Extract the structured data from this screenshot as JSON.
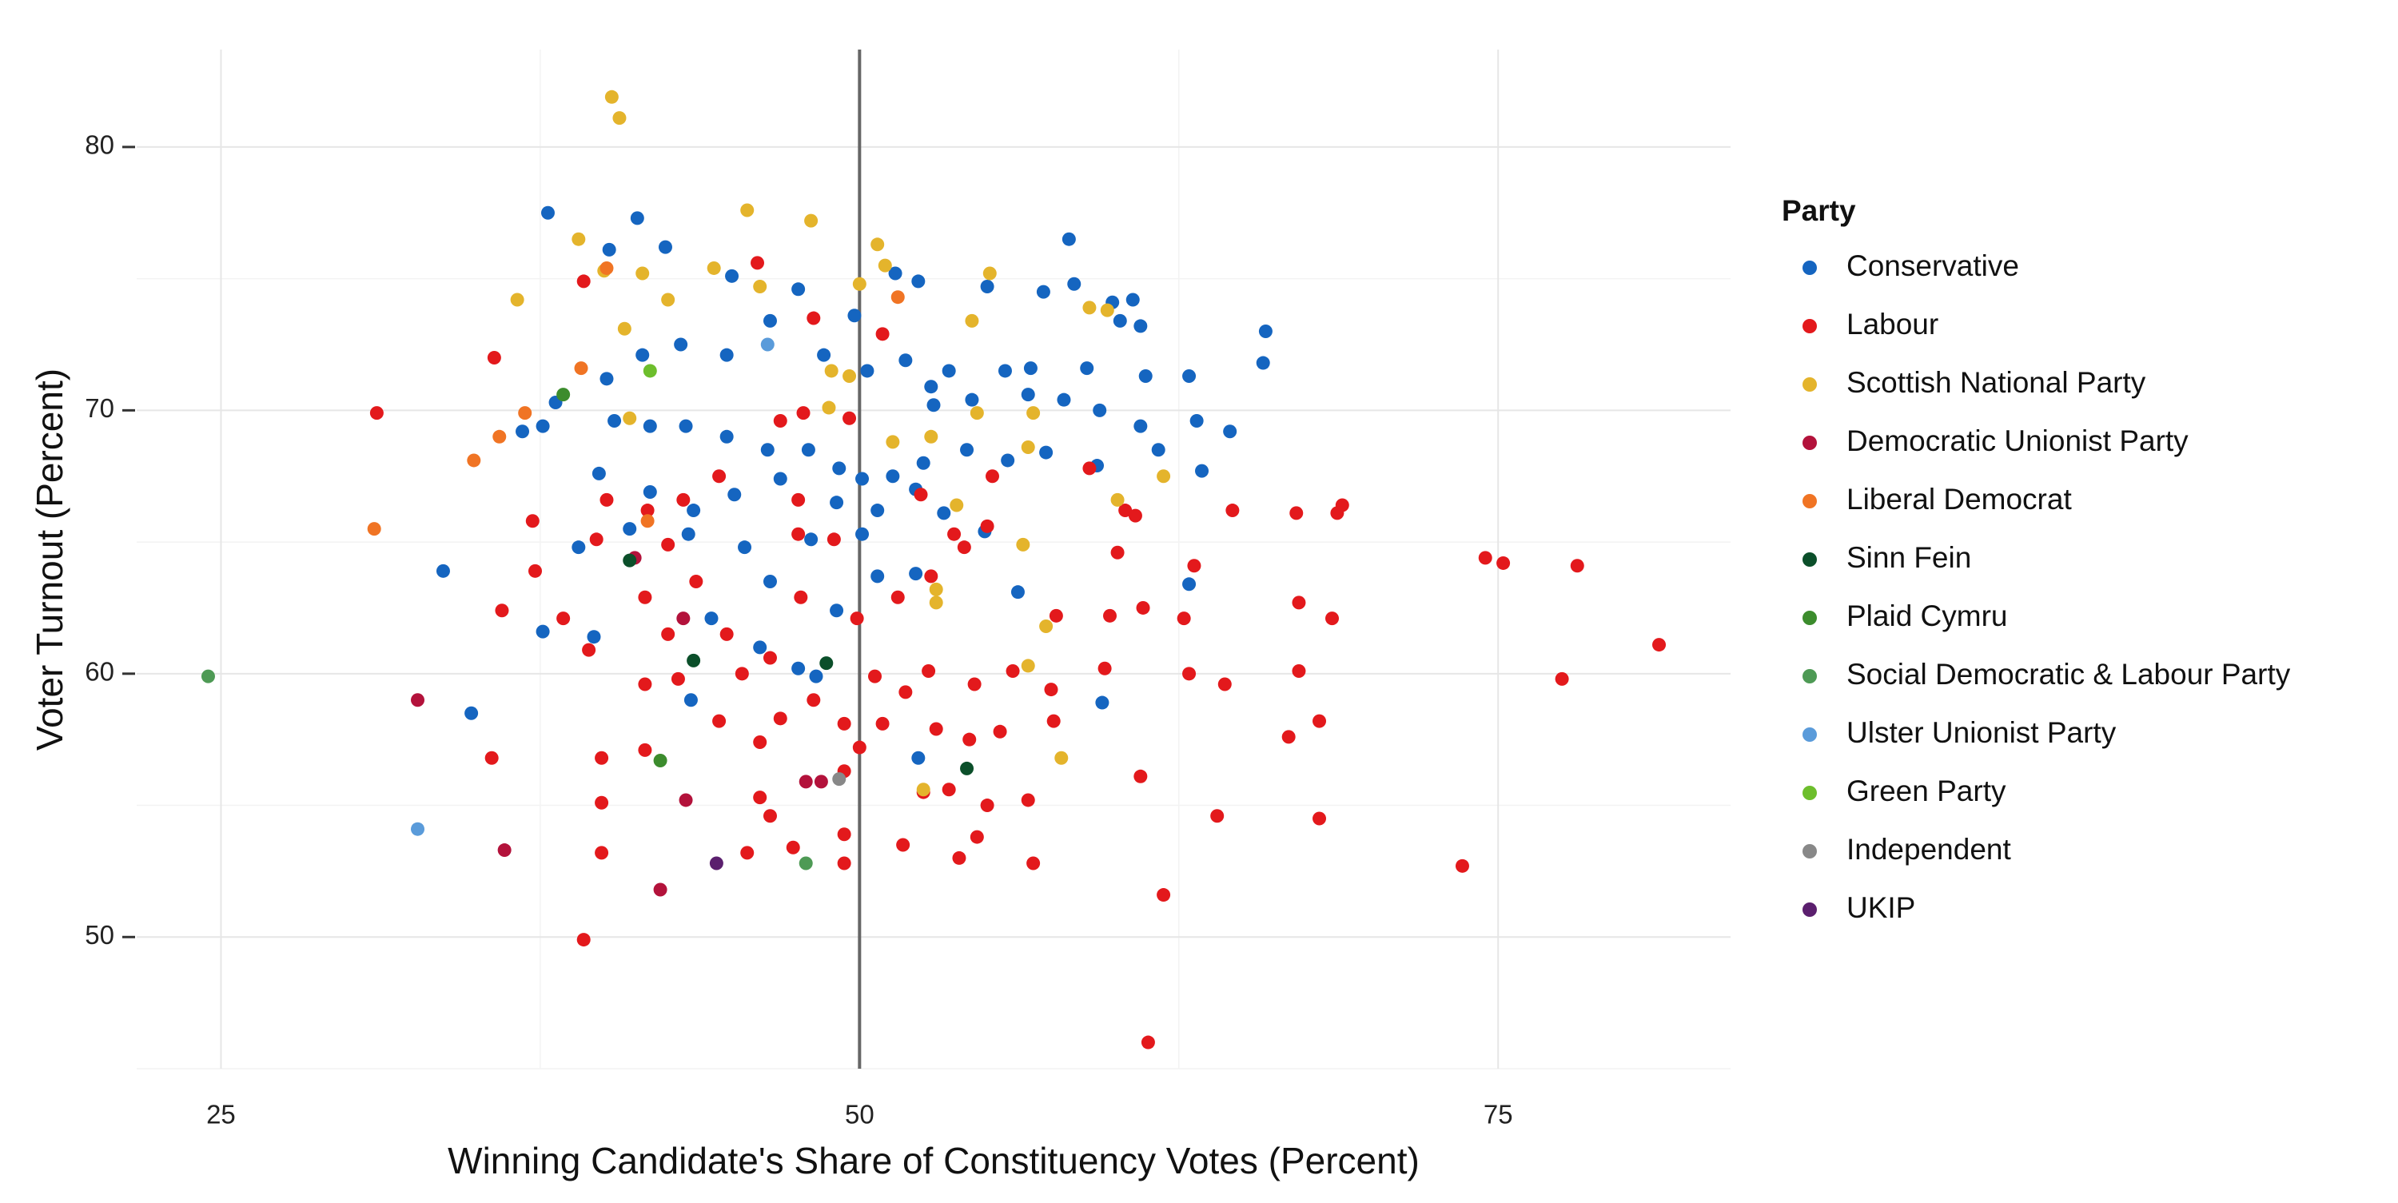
{
  "chart_data": {
    "type": "scatter",
    "x_label": "Winning Candidate's Share of Constituency Votes (Percent)",
    "y_label": "Voter Turnout (Percent)",
    "xlim": [
      21.7,
      84.1
    ],
    "ylim": [
      45.0,
      83.7
    ],
    "xticks": [
      25,
      50,
      75
    ],
    "yticks": [
      50,
      60,
      70,
      80
    ],
    "x_minor_grid": [
      37.5,
      62.5
    ],
    "y_minor_grid": [
      45,
      55,
      65,
      75
    ],
    "grid": true,
    "vline": 50,
    "legend_title": "Party",
    "legend_position": "right",
    "series": [
      {
        "name": "Conservative",
        "color": "#1565C0",
        "x": [
          37.8,
          41.3,
          42.4,
          40.2,
          58.2,
          45.0,
          47.6,
          49.8,
          51.4,
          52.3,
          55.0,
          57.2,
          58.4,
          59.9,
          60.7,
          61.0,
          60.2,
          65.9,
          65.8,
          62.9,
          61.2,
          58.9,
          56.7,
          55.7,
          53.5,
          52.8,
          51.8,
          50.3,
          48.6,
          46.5,
          44.8,
          43.0,
          41.5,
          40.1,
          38.1,
          36.8,
          37.6,
          40.4,
          41.8,
          43.2,
          44.8,
          46.4,
          48.0,
          49.2,
          50.1,
          51.3,
          52.5,
          54.2,
          55.8,
          57.3,
          59.3,
          61.7,
          63.4,
          64.5,
          63.2,
          61.0,
          59.4,
          58.0,
          56.6,
          54.4,
          52.9,
          39.8,
          41.8,
          43.5,
          45.1,
          46.9,
          49.1,
          50.7,
          52.2,
          53.3,
          54.9,
          50.1,
          48.1,
          45.5,
          43.3,
          41.0,
          39.0,
          33.7,
          37.6,
          39.6,
          34.8,
          49.1,
          50.7,
          52.2,
          56.2,
          59.5,
          52.3,
          62.9,
          46.5,
          44.2,
          48.3,
          43.4,
          46.1,
          47.6
        ],
        "y": [
          77.5,
          77.3,
          76.2,
          76.1,
          76.5,
          75.1,
          74.6,
          73.6,
          75.2,
          74.9,
          74.7,
          74.5,
          74.8,
          74.1,
          74.2,
          73.2,
          73.4,
          73.0,
          71.8,
          71.3,
          71.3,
          71.6,
          71.6,
          71.5,
          71.5,
          70.9,
          71.9,
          71.5,
          72.1,
          73.4,
          72.1,
          72.5,
          72.1,
          71.2,
          70.3,
          69.2,
          69.4,
          69.6,
          69.4,
          69.4,
          69.0,
          68.5,
          68.5,
          67.8,
          67.4,
          67.5,
          68.0,
          68.5,
          68.1,
          68.4,
          67.9,
          68.5,
          67.7,
          69.2,
          69.6,
          69.4,
          70.0,
          70.4,
          70.6,
          70.4,
          70.2,
          67.6,
          66.9,
          66.2,
          66.8,
          67.4,
          66.5,
          66.2,
          67.0,
          66.1,
          65.4,
          65.3,
          65.1,
          64.8,
          65.3,
          65.5,
          64.8,
          63.9,
          61.6,
          61.4,
          58.5,
          62.4,
          63.7,
          63.8,
          63.1,
          58.9,
          56.8,
          63.4,
          63.5,
          62.1,
          59.9,
          59.0,
          61.0,
          60.2
        ]
      },
      {
        "name": "Labour",
        "color": "#E3191C",
        "x": [
          31.1,
          35.7,
          39.2,
          48.2,
          50.9,
          46.0,
          36.0,
          37.3,
          37.2,
          38.4,
          39.4,
          39.7,
          40.1,
          41.7,
          42.5,
          41.6,
          42.5,
          43.6,
          41.6,
          42.9,
          44.5,
          46.5,
          46.9,
          46.1,
          48.2,
          49.4,
          50.0,
          49.4,
          46.1,
          46.5,
          47.4,
          45.6,
          49.4,
          49.4,
          39.9,
          39.2,
          39.9,
          35.6,
          39.9,
          41.6,
          52.5,
          53.5,
          51.7,
          53.9,
          54.6,
          56.8,
          56.6,
          55.0,
          53.0,
          54.3,
          55.5,
          57.6,
          57.5,
          56.0,
          54.5,
          52.7,
          51.8,
          50.9,
          50.6,
          49.9,
          51.5,
          52.8,
          54.1,
          55.0,
          57.7,
          59.8,
          59.6,
          61.1,
          60.1,
          60.4,
          60.8,
          64.6,
          67.1,
          68.7,
          68.9,
          67.2,
          68.5,
          67.2,
          68.0,
          66.8,
          68.0,
          64.0,
          64.3,
          62.9,
          63.1,
          62.7,
          61.0,
          61.9,
          61.3,
          73.6,
          74.5,
          75.2,
          78.1,
          81.3,
          77.5,
          46.9,
          47.8,
          49.6,
          44.5,
          43.1,
          47.6,
          49.0,
          47.6,
          52.4,
          53.7,
          55.2,
          59.0,
          44.8,
          45.4,
          47.7
        ],
        "y": [
          69.9,
          72.0,
          74.9,
          73.5,
          72.9,
          75.6,
          62.4,
          63.9,
          65.8,
          62.1,
          60.9,
          65.1,
          66.6,
          66.2,
          64.9,
          62.9,
          61.5,
          63.5,
          59.6,
          59.8,
          58.2,
          60.6,
          58.3,
          57.4,
          59.0,
          58.1,
          57.2,
          56.3,
          55.3,
          54.6,
          53.4,
          53.2,
          53.9,
          52.8,
          55.1,
          49.9,
          53.2,
          56.8,
          56.8,
          57.1,
          55.5,
          55.6,
          53.5,
          53.0,
          53.8,
          52.8,
          55.2,
          55.0,
          57.9,
          57.5,
          57.8,
          58.2,
          59.4,
          60.1,
          59.6,
          60.1,
          59.3,
          58.1,
          59.9,
          62.1,
          62.9,
          63.7,
          64.8,
          65.6,
          62.2,
          62.2,
          60.2,
          62.5,
          64.6,
          66.2,
          66.0,
          66.2,
          66.1,
          66.1,
          66.4,
          62.7,
          62.1,
          60.1,
          58.2,
          57.6,
          54.5,
          54.6,
          59.6,
          60.0,
          64.1,
          62.1,
          56.1,
          51.6,
          46.0,
          52.7,
          64.4,
          64.2,
          64.1,
          61.1,
          59.8,
          69.6,
          69.9,
          69.7,
          67.5,
          66.6,
          66.6,
          65.1,
          65.3,
          66.8,
          65.3,
          67.5,
          67.8,
          61.5,
          60.0,
          62.9
        ]
      },
      {
        "name": "Scottish National Party",
        "color": "#E4B42C",
        "x": [
          40.3,
          40.6,
          39.0,
          45.6,
          48.1,
          50.7,
          36.6,
          42.5,
          44.3,
          40.0,
          41.5,
          46.1,
          51.0,
          55.1,
          54.4,
          59.7,
          59.0,
          40.8,
          48.9,
          49.6,
          52.8,
          54.6,
          56.8,
          56.6,
          51.3,
          53.8,
          60.1,
          61.9,
          56.4,
          53.0,
          57.3,
          53.0,
          56.6,
          57.9,
          52.5,
          50.0,
          41.0,
          48.8
        ],
        "y": [
          81.9,
          81.1,
          76.5,
          77.6,
          77.2,
          76.3,
          74.2,
          74.2,
          75.4,
          75.3,
          75.2,
          74.7,
          75.5,
          75.2,
          73.4,
          73.8,
          73.9,
          73.1,
          71.5,
          71.3,
          69.0,
          69.9,
          69.9,
          68.6,
          68.8,
          66.4,
          66.6,
          67.5,
          64.9,
          63.2,
          61.8,
          62.7,
          60.3,
          56.8,
          55.6,
          74.8,
          69.7,
          70.1
        ]
      },
      {
        "name": "Democratic Unionist Party",
        "color": "#B3123B",
        "x": [
          32.7,
          36.1,
          42.2,
          43.2,
          47.9,
          48.5,
          43.1,
          41.2
        ],
        "y": [
          59.0,
          53.3,
          51.8,
          55.2,
          55.9,
          55.9,
          62.1,
          64.4
        ]
      },
      {
        "name": "Liberal Democrat",
        "color": "#F07424",
        "x": [
          31.0,
          34.9,
          35.9,
          36.9,
          39.1,
          40.1,
          51.5,
          41.7
        ],
        "y": [
          65.5,
          68.1,
          69.0,
          69.9,
          71.6,
          75.4,
          74.3,
          65.8
        ]
      },
      {
        "name": "Sinn Fein",
        "color": "#0B4F2A",
        "x": [
          41.0,
          43.5,
          48.7,
          54.2
        ],
        "y": [
          64.3,
          60.5,
          60.4,
          56.4
        ]
      },
      {
        "name": "Plaid Cymru",
        "color": "#3C8C2D",
        "x": [
          38.4,
          42.2
        ],
        "y": [
          70.6,
          56.7
        ]
      },
      {
        "name": "Social Democratic & Labour Party",
        "color": "#4E9A55",
        "x": [
          24.5,
          47.9
        ],
        "y": [
          59.9,
          52.8
        ]
      },
      {
        "name": "Ulster Unionist Party",
        "color": "#5A9BDA",
        "x": [
          32.7,
          46.4
        ],
        "y": [
          54.1,
          72.5
        ]
      },
      {
        "name": "Green Party",
        "color": "#6DBE2C",
        "x": [
          41.8
        ],
        "y": [
          71.5
        ]
      },
      {
        "name": "Independent",
        "color": "#888888",
        "x": [
          49.2
        ],
        "y": [
          56.0
        ]
      },
      {
        "name": "UKIP",
        "color": "#5B1F6E",
        "x": [
          44.4
        ],
        "y": [
          52.8
        ]
      }
    ]
  }
}
